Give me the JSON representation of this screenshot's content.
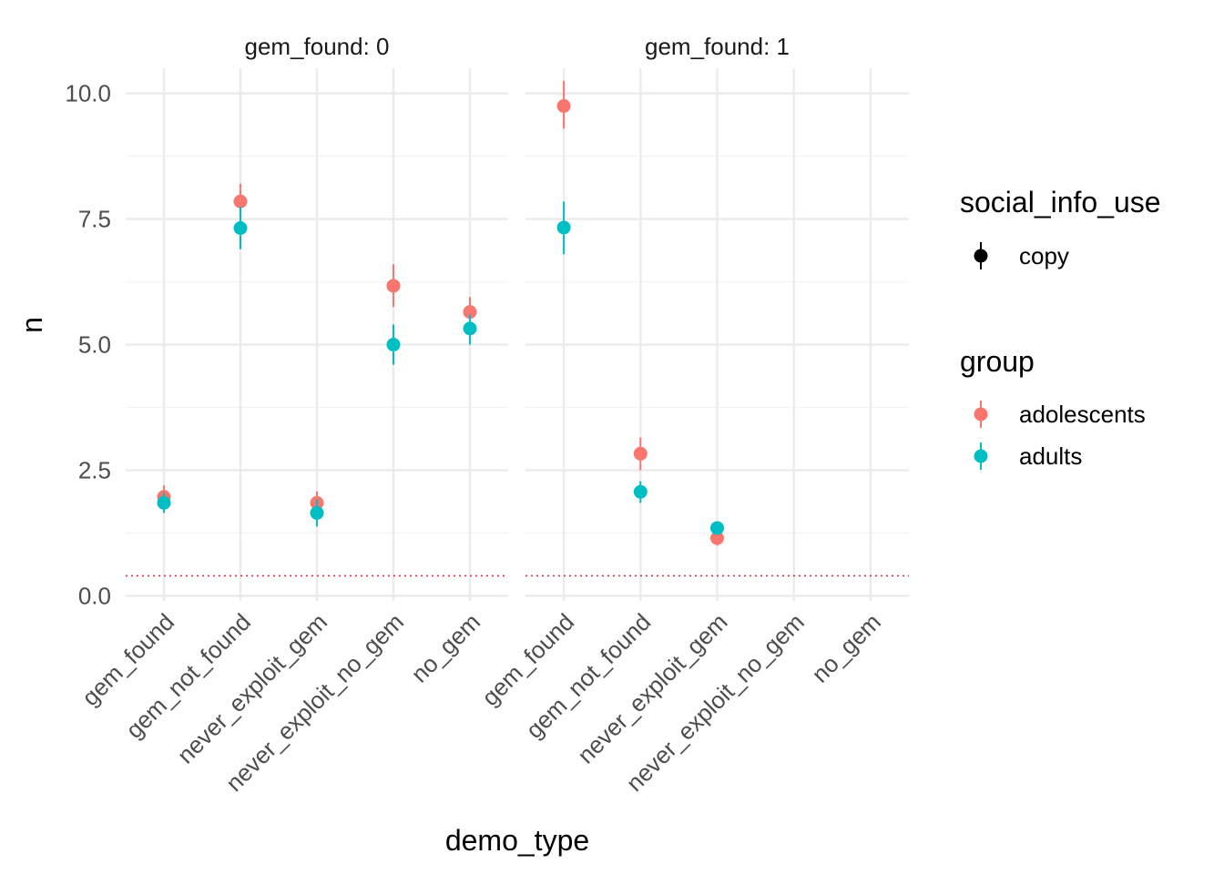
{
  "chart_data": {
    "type": "scatter",
    "geometry": "pointrange",
    "facet_var": "gem_found",
    "facets": [
      {
        "label": "gem_found: 0",
        "series": [
          {
            "name": "adolescents",
            "x": [
              "gem_found",
              "gem_not_found",
              "never_exploit_gem",
              "never_exploit_no_gem",
              "no_gem"
            ],
            "y": [
              1.97,
              7.85,
              1.85,
              6.17,
              5.65
            ],
            "ymin": [
              1.75,
              7.5,
              1.62,
              5.75,
              5.35
            ],
            "ymax": [
              2.2,
              8.2,
              2.08,
              6.6,
              5.95
            ]
          },
          {
            "name": "adults",
            "x": [
              "gem_found",
              "gem_not_found",
              "never_exploit_gem",
              "never_exploit_no_gem",
              "no_gem"
            ],
            "y": [
              1.85,
              7.32,
              1.65,
              5.0,
              5.32
            ],
            "ymin": [
              1.65,
              6.9,
              1.38,
              4.6,
              5.0
            ],
            "ymax": [
              2.05,
              7.75,
              1.92,
              5.4,
              5.6
            ]
          }
        ]
      },
      {
        "label": "gem_found: 1",
        "series": [
          {
            "name": "adolescents",
            "x": [
              "gem_found",
              "gem_not_found",
              "never_exploit_gem"
            ],
            "y": [
              9.75,
              2.83,
              1.15
            ],
            "ymin": [
              9.3,
              2.5,
              1.0
            ],
            "ymax": [
              10.25,
              3.15,
              1.28
            ]
          },
          {
            "name": "adults",
            "x": [
              "gem_found",
              "gem_not_found",
              "never_exploit_gem"
            ],
            "y": [
              7.33,
              2.07,
              1.35
            ],
            "ymin": [
              6.8,
              1.85,
              1.25
            ],
            "ymax": [
              7.85,
              2.28,
              1.45
            ]
          }
        ]
      }
    ],
    "categories": [
      "gem_found",
      "gem_not_found",
      "never_exploit_gem",
      "never_exploit_no_gem",
      "no_gem"
    ],
    "y_ticks": [
      0,
      2.5,
      5,
      7.5,
      10
    ],
    "y_tick_labels": [
      "0.0",
      "2.5",
      "5.0",
      "7.5",
      "10.0"
    ],
    "ylim": [
      -0.1,
      10.5
    ],
    "reference_line": {
      "y": 0.4,
      "style": "dotted",
      "color": "#e0294a"
    },
    "xlabel": "demo_type",
    "ylabel": "n",
    "grid": true,
    "legend_placement": "right",
    "legend": {
      "shape": {
        "title": "social_info_use",
        "entries": [
          {
            "label": "copy",
            "color": "#000000"
          }
        ]
      },
      "color": {
        "title": "group",
        "entries": [
          {
            "label": "adolescents",
            "color": "#F8766D"
          },
          {
            "label": "adults",
            "color": "#00BFC4"
          }
        ]
      }
    }
  }
}
